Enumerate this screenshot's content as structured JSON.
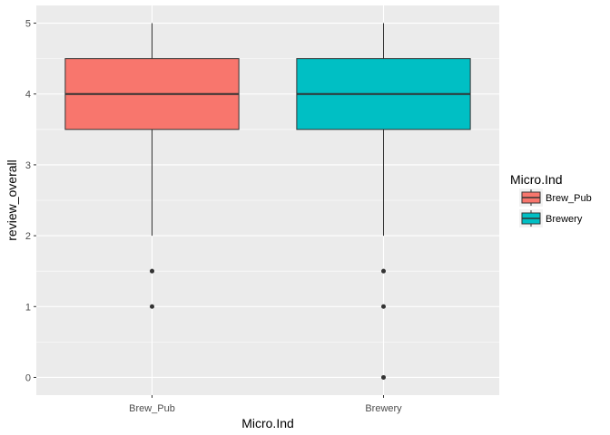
{
  "chart_data": {
    "type": "boxplot",
    "xlabel": "Micro.Ind",
    "ylabel": "review_overall",
    "categories": [
      "Brew_Pub",
      "Brewery"
    ],
    "ylim": [
      -0.25,
      5.25
    ],
    "yticks": [
      0,
      1,
      2,
      3,
      4,
      5
    ],
    "grid": true,
    "legend": {
      "title": "Micro.Ind",
      "position": "right",
      "entries": [
        "Brew_Pub",
        "Brewery"
      ]
    },
    "series": [
      {
        "name": "Brew_Pub",
        "color": "#F8766D",
        "min": 2,
        "q1": 3.5,
        "median": 4,
        "q3": 4.5,
        "max": 5,
        "outliers": [
          1.5,
          1
        ]
      },
      {
        "name": "Brewery",
        "color": "#00BFC4",
        "min": 2,
        "q1": 3.5,
        "median": 4,
        "q3": 4.5,
        "max": 5,
        "outliers": [
          1.5,
          1,
          0
        ]
      }
    ],
    "colors": {
      "panel": "#EBEBEB",
      "grid": "#FFFFFF",
      "outline": "#333333"
    }
  }
}
